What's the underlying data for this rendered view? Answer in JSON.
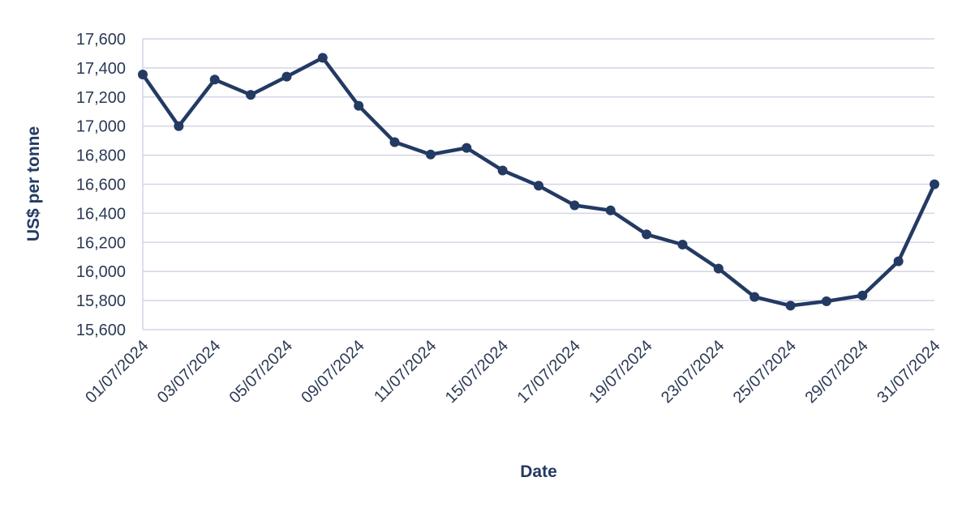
{
  "chart_data": {
    "type": "line",
    "title": "",
    "xlabel": "Date",
    "ylabel": "US$ per tonne",
    "ylim": [
      15600,
      17600
    ],
    "ytick_step": 200,
    "grid": true,
    "legend": "none",
    "series_color": "#233a63",
    "grid_color": "#d4d4e6",
    "x_tick_labels": [
      "01/07/2024",
      "03/07/2024",
      "05/07/2024",
      "09/07/2024",
      "11/07/2024",
      "15/07/2024",
      "17/07/2024",
      "19/07/2024",
      "23/07/2024",
      "25/07/2024",
      "29/07/2024",
      "31/07/2024"
    ],
    "x": [
      "01/07/2024",
      "02/07/2024",
      "03/07/2024",
      "04/07/2024",
      "05/07/2024",
      "08/07/2024",
      "09/07/2024",
      "10/07/2024",
      "11/07/2024",
      "12/07/2024",
      "15/07/2024",
      "16/07/2024",
      "17/07/2024",
      "18/07/2024",
      "19/07/2024",
      "22/07/2024",
      "23/07/2024",
      "24/07/2024",
      "25/07/2024",
      "26/07/2024",
      "29/07/2024",
      "30/07/2024",
      "31/07/2024"
    ],
    "series": [
      {
        "values": [
          17355,
          17000,
          17320,
          17215,
          17340,
          17470,
          17140,
          16890,
          16805,
          16850,
          16695,
          16590,
          16455,
          16420,
          16255,
          16185,
          16020,
          15825,
          15765,
          15795,
          15835,
          16070,
          16600
        ]
      }
    ]
  }
}
